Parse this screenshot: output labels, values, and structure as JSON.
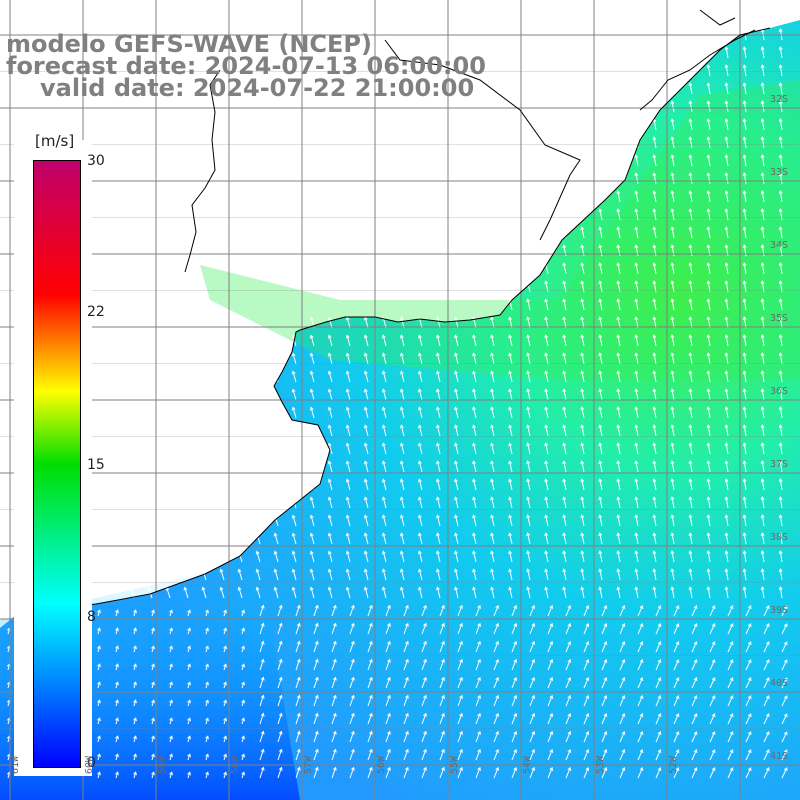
{
  "title": {
    "line1": "modelo GEFS-WAVE (NCEP)",
    "line2": "forecast date: 2024-07-13 06:00:00",
    "line3": "valid date: 2024-07-22 21:00:00"
  },
  "colorbar": {
    "unit": "[m/s]",
    "min": 0,
    "max": 30,
    "ticks": [
      "0",
      "8",
      "15",
      "22",
      "30"
    ]
  },
  "lat_labels": [
    "32S",
    "33S",
    "34S",
    "35S",
    "36S",
    "37S",
    "38S",
    "39S",
    "40S",
    "41S"
  ],
  "lon_labels": [
    "61W",
    "60W",
    "59W",
    "58W",
    "57W",
    "56W",
    "55W",
    "54W",
    "53W",
    "52W"
  ],
  "colors": {
    "land": "#ffffff",
    "grid": "#808080",
    "coast": "#000000",
    "arrows": "#ffffff",
    "title": "#808080"
  }
}
